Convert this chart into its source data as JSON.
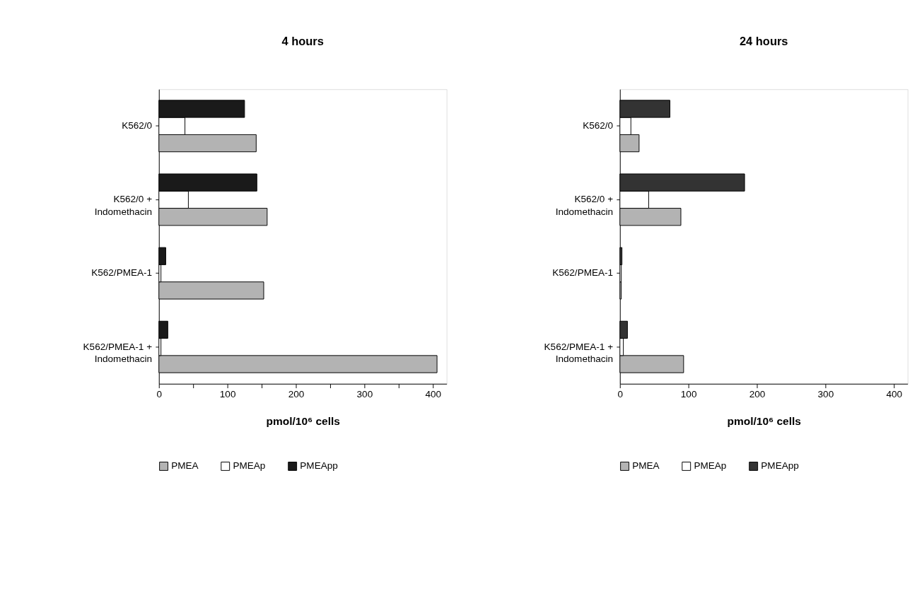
{
  "chart_data": [
    {
      "type": "bar",
      "orientation": "horizontal",
      "title": "4 hours",
      "xlabel": "pmol/10⁶ cells",
      "legend": "bottom",
      "categories": [
        "K562/0",
        "K562/0 + Indomethacin",
        "K562/PMEA-1",
        "K562/PMEA-1 + Indomethacin"
      ],
      "series": [
        {
          "name": "PMEA",
          "color": "#b3b3b3",
          "values": [
            142,
            158,
            153,
            406
          ]
        },
        {
          "name": "PMEAp",
          "color": "#ffffff",
          "values": [
            38,
            43,
            3,
            3
          ]
        },
        {
          "name": "PMEApp",
          "color": "#1a1a1a",
          "values": [
            125,
            143,
            10,
            13
          ]
        }
      ],
      "xlim": [
        0,
        420
      ],
      "xticks": [
        0,
        {
          "value": 50,
          "label": null
        },
        100,
        {
          "value": 150,
          "label": null
        },
        200,
        {
          "value": 250,
          "label": null
        },
        300,
        {
          "value": 350,
          "label": null
        },
        400
      ]
    },
    {
      "type": "bar",
      "orientation": "horizontal",
      "title": "24 hours",
      "xlabel": "pmol/10⁶ cells",
      "legend": "bottom",
      "categories": [
        "K562/0",
        "K562/0 + Indomethacin",
        "K562/PMEA-1",
        "K562/PMEA-1 + Indomethacin"
      ],
      "series": [
        {
          "name": "PMEA",
          "color": "#b3b3b3",
          "values": [
            28,
            89,
            2,
            93
          ]
        },
        {
          "name": "PMEAp",
          "color": "#ffffff",
          "values": [
            16,
            42,
            2,
            5
          ]
        },
        {
          "name": "PMEApp",
          "color": "#333333",
          "values": [
            73,
            182,
            3,
            11
          ]
        }
      ],
      "xlim": [
        0,
        420
      ],
      "xticks": [
        0,
        100,
        200,
        300,
        400
      ]
    }
  ]
}
